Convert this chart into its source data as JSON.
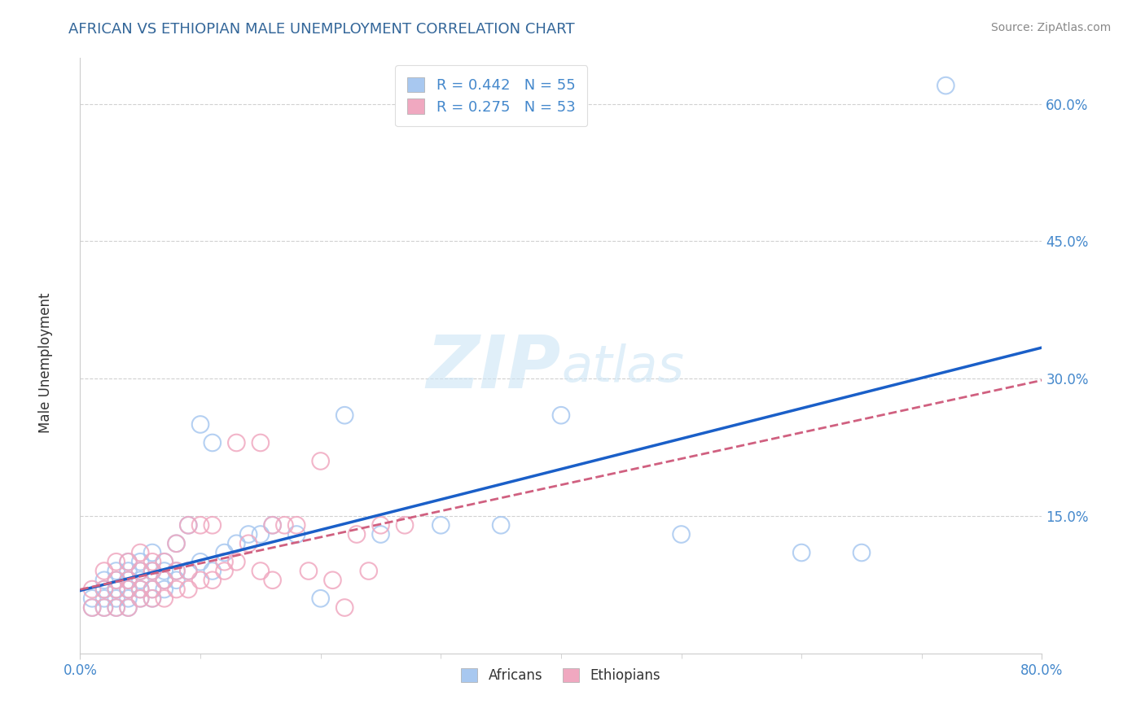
{
  "title": "AFRICAN VS ETHIOPIAN MALE UNEMPLOYMENT CORRELATION CHART",
  "source_text": "Source: ZipAtlas.com",
  "ylabel": "Male Unemployment",
  "xlim": [
    0.0,
    0.8
  ],
  "ylim": [
    0.0,
    0.65
  ],
  "y_ticks": [
    0.15,
    0.3,
    0.45,
    0.6
  ],
  "grid_color": "#cccccc",
  "background_color": "#ffffff",
  "africans_color": "#a8c8f0",
  "ethiopians_color": "#f0a8c0",
  "africans_line_color": "#1a5fc8",
  "ethiopians_line_color": "#d06080",
  "africans_R": 0.442,
  "africans_N": 55,
  "ethiopians_R": 0.275,
  "ethiopians_N": 53,
  "watermark_zip": "ZIP",
  "watermark_atlas": "atlas",
  "title_color": "#336699",
  "source_color": "#888888",
  "tick_label_color": "#4488cc",
  "africans_scatter_x": [
    0.01,
    0.01,
    0.02,
    0.02,
    0.02,
    0.02,
    0.03,
    0.03,
    0.03,
    0.03,
    0.03,
    0.04,
    0.04,
    0.04,
    0.04,
    0.04,
    0.04,
    0.05,
    0.05,
    0.05,
    0.05,
    0.05,
    0.06,
    0.06,
    0.06,
    0.06,
    0.07,
    0.07,
    0.07,
    0.07,
    0.08,
    0.08,
    0.08,
    0.09,
    0.09,
    0.1,
    0.1,
    0.11,
    0.11,
    0.12,
    0.13,
    0.14,
    0.15,
    0.16,
    0.18,
    0.2,
    0.22,
    0.25,
    0.3,
    0.35,
    0.4,
    0.5,
    0.6,
    0.65,
    0.72
  ],
  "africans_scatter_y": [
    0.05,
    0.06,
    0.05,
    0.06,
    0.07,
    0.08,
    0.05,
    0.06,
    0.07,
    0.08,
    0.09,
    0.05,
    0.06,
    0.07,
    0.08,
    0.09,
    0.1,
    0.06,
    0.07,
    0.08,
    0.09,
    0.1,
    0.06,
    0.07,
    0.09,
    0.11,
    0.07,
    0.08,
    0.09,
    0.1,
    0.08,
    0.09,
    0.12,
    0.09,
    0.14,
    0.1,
    0.25,
    0.09,
    0.23,
    0.11,
    0.12,
    0.13,
    0.13,
    0.14,
    0.13,
    0.06,
    0.26,
    0.13,
    0.14,
    0.14,
    0.26,
    0.13,
    0.11,
    0.11,
    0.62
  ],
  "ethiopians_scatter_x": [
    0.01,
    0.01,
    0.02,
    0.02,
    0.02,
    0.03,
    0.03,
    0.03,
    0.03,
    0.04,
    0.04,
    0.04,
    0.04,
    0.05,
    0.05,
    0.05,
    0.05,
    0.06,
    0.06,
    0.06,
    0.06,
    0.07,
    0.07,
    0.07,
    0.08,
    0.08,
    0.08,
    0.09,
    0.09,
    0.09,
    0.1,
    0.1,
    0.11,
    0.11,
    0.12,
    0.12,
    0.13,
    0.13,
    0.14,
    0.15,
    0.16,
    0.17,
    0.18,
    0.19,
    0.2,
    0.21,
    0.22,
    0.23,
    0.24,
    0.25,
    0.27,
    0.15,
    0.16
  ],
  "ethiopians_scatter_y": [
    0.05,
    0.07,
    0.05,
    0.07,
    0.09,
    0.05,
    0.07,
    0.08,
    0.1,
    0.05,
    0.07,
    0.08,
    0.1,
    0.06,
    0.07,
    0.09,
    0.11,
    0.06,
    0.07,
    0.09,
    0.1,
    0.06,
    0.08,
    0.1,
    0.07,
    0.09,
    0.12,
    0.07,
    0.09,
    0.14,
    0.08,
    0.14,
    0.08,
    0.14,
    0.09,
    0.1,
    0.1,
    0.23,
    0.12,
    0.09,
    0.14,
    0.14,
    0.14,
    0.09,
    0.21,
    0.08,
    0.05,
    0.13,
    0.09,
    0.14,
    0.14,
    0.23,
    0.08
  ]
}
